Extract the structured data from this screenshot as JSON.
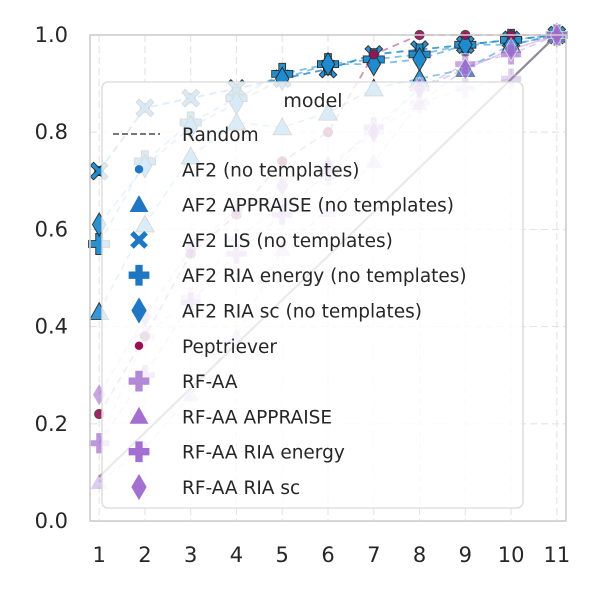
{
  "chart_data": {
    "type": "line",
    "title": "",
    "xlabel": "",
    "ylabel": "",
    "x": [
      1,
      2,
      3,
      4,
      5,
      6,
      7,
      8,
      9,
      10,
      11
    ],
    "xlim": [
      0.8,
      11.2
    ],
    "ylim": [
      0.0,
      1.0
    ],
    "xticks": [
      "1",
      "2",
      "3",
      "4",
      "5",
      "6",
      "7",
      "8",
      "9",
      "10",
      "11"
    ],
    "yticks": [
      "0.0",
      "0.2",
      "0.4",
      "0.6",
      "0.8",
      "1.0"
    ],
    "grid": true,
    "legend": {
      "title": "model",
      "placement": "lower-right",
      "entries": [
        "Random",
        "AF2 (no templates)",
        "AF2 APPRAISE (no templates)",
        "AF2 LIS (no templates)",
        "AF2 RIA energy (no templates)",
        "AF2 RIA sc (no templates)",
        "Peptriever",
        "RF-AA",
        "RF-AA APPRAISE",
        "RF-AA RIA energy",
        "RF-AA RIA sc"
      ]
    },
    "series": [
      {
        "name": "Random",
        "marker": "none",
        "color": "#808080",
        "values": [
          0.091,
          0.182,
          0.273,
          0.364,
          0.455,
          0.545,
          0.636,
          0.727,
          0.818,
          0.909,
          1.0
        ]
      },
      {
        "name": "AF2 (no templates)",
        "marker": "circle",
        "color": "#1f77c4",
        "values": [
          0.72,
          0.85,
          0.87,
          0.89,
          0.91,
          0.93,
          0.96,
          0.97,
          0.98,
          0.99,
          1.0
        ]
      },
      {
        "name": "AF2 APPRAISE (no templates)",
        "marker": "triangle",
        "color": "#2a93d5",
        "values": [
          0.43,
          0.61,
          0.75,
          0.82,
          0.81,
          0.84,
          0.89,
          0.91,
          0.93,
          0.98,
          1.0
        ]
      },
      {
        "name": "AF2 LIS (no templates)",
        "marker": "x",
        "color": "#1f8ccf",
        "values": [
          0.72,
          0.85,
          0.87,
          0.89,
          0.91,
          0.93,
          0.96,
          0.97,
          0.98,
          0.99,
          1.0
        ]
      },
      {
        "name": "AF2 RIA energy (no templates)",
        "marker": "plus",
        "color": "#1f8ccf",
        "values": [
          0.57,
          0.74,
          0.82,
          0.87,
          0.92,
          0.94,
          0.95,
          0.96,
          0.98,
          0.99,
          1.0
        ]
      },
      {
        "name": "AF2 RIA sc (no templates)",
        "marker": "diamond",
        "color": "#1f8ccf",
        "values": [
          0.61,
          0.73,
          0.81,
          0.86,
          0.91,
          0.94,
          0.94,
          0.95,
          0.98,
          0.98,
          1.0
        ]
      },
      {
        "name": "Peptriever",
        "marker": "circle",
        "color": "#9b0e55",
        "values": [
          0.22,
          0.38,
          0.55,
          0.63,
          0.74,
          0.8,
          0.96,
          1.0,
          1.0,
          1.0,
          1.0
        ]
      },
      {
        "name": "RF-AA",
        "marker": "plus",
        "color": "#b289d6",
        "values": [
          0.16,
          0.38,
          0.46,
          0.58,
          0.65,
          0.71,
          0.8,
          0.86,
          0.89,
          0.91,
          1.0
        ]
      },
      {
        "name": "RF-AA APPRAISE",
        "marker": "triangle",
        "color": "#a36fd0",
        "values": [
          0.08,
          0.15,
          0.26,
          0.38,
          0.56,
          0.64,
          0.74,
          0.86,
          0.93,
          0.97,
          1.0
        ]
      },
      {
        "name": "RF-AA RIA energy",
        "marker": "plus",
        "color": "#a36fd0",
        "values": [
          0.16,
          0.3,
          0.45,
          0.55,
          0.63,
          0.72,
          0.81,
          0.89,
          0.94,
          0.96,
          1.0
        ]
      },
      {
        "name": "RF-AA RIA sc",
        "marker": "diamond",
        "color": "#a36fd0",
        "values": [
          0.26,
          0.42,
          0.56,
          0.64,
          0.69,
          0.73,
          0.8,
          0.89,
          0.93,
          0.97,
          1.0
        ]
      }
    ]
  }
}
